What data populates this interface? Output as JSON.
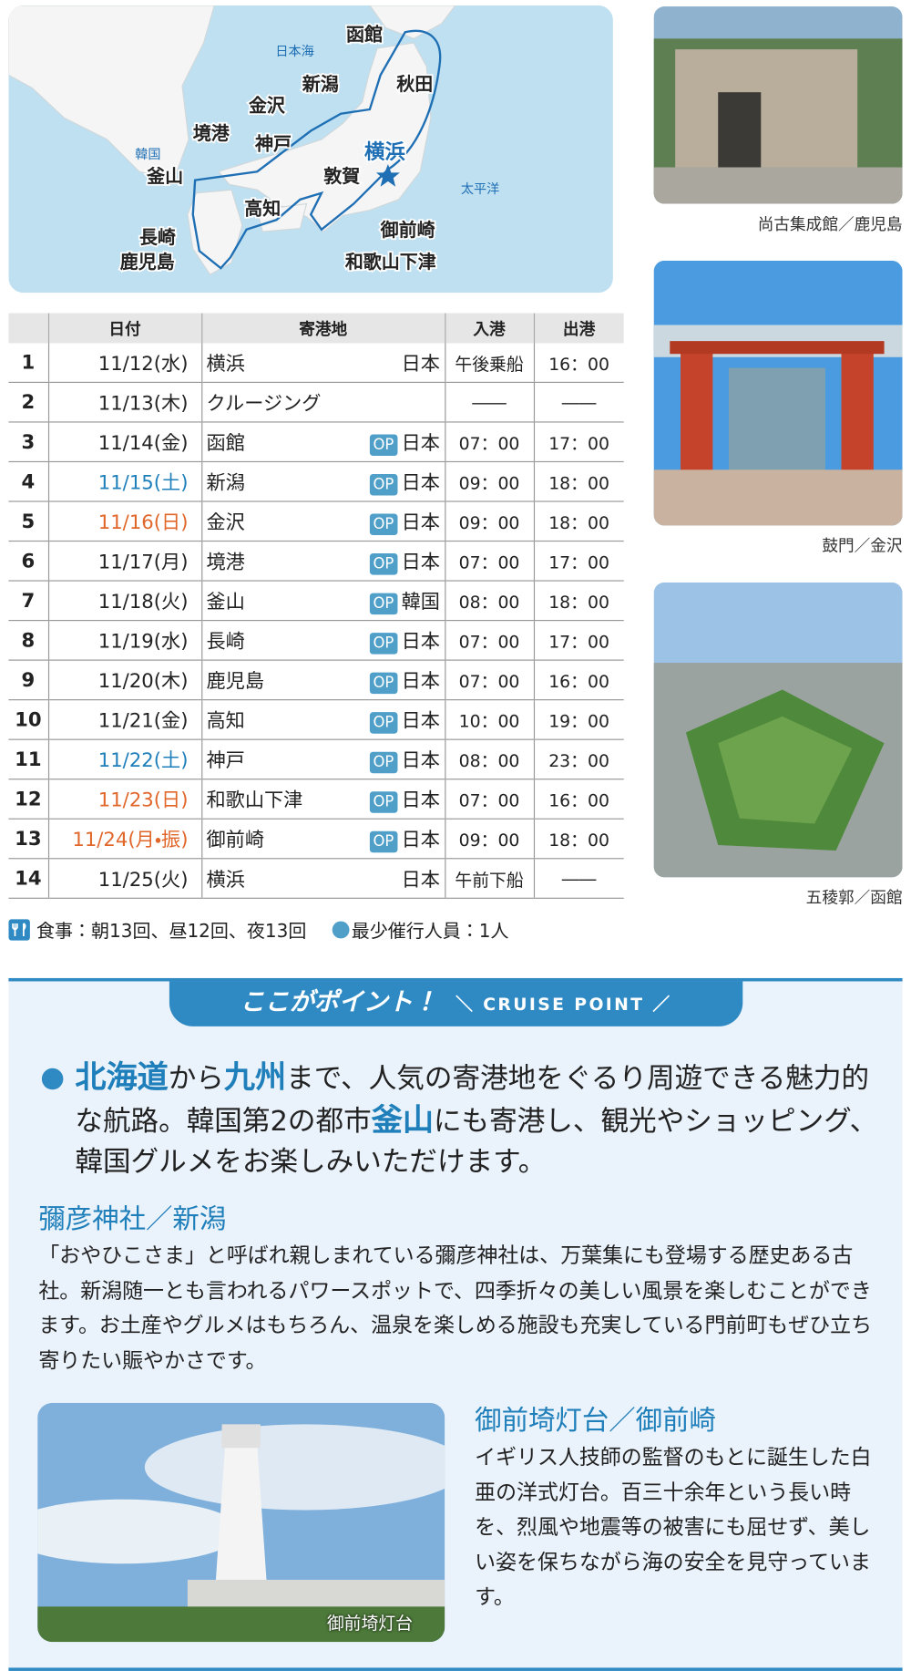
{
  "map": {
    "labels": [
      {
        "text": "函館",
        "kind": "port"
      },
      {
        "text": "日本海",
        "kind": "sea"
      },
      {
        "text": "新潟",
        "kind": "port"
      },
      {
        "text": "秋田",
        "kind": "port"
      },
      {
        "text": "金沢",
        "kind": "port"
      },
      {
        "text": "境港",
        "kind": "port"
      },
      {
        "text": "神戸",
        "kind": "port"
      },
      {
        "text": "横浜",
        "kind": "home"
      },
      {
        "text": "韓国",
        "kind": "sea"
      },
      {
        "text": "釜山",
        "kind": "port"
      },
      {
        "text": "敦賀",
        "kind": "port"
      },
      {
        "text": "太平洋",
        "kind": "sea"
      },
      {
        "text": "高知",
        "kind": "port"
      },
      {
        "text": "長崎",
        "kind": "port"
      },
      {
        "text": "御前崎",
        "kind": "port"
      },
      {
        "text": "鹿児島",
        "kind": "port"
      },
      {
        "text": "和歌山下津",
        "kind": "port"
      }
    ]
  },
  "photos": [
    {
      "caption": "尚古集成館／鹿児島"
    },
    {
      "caption": "鼓門／金沢"
    },
    {
      "caption": "五稜郭／函館"
    }
  ],
  "table": {
    "headers": [
      "日付",
      "寄港地",
      "入港",
      "出港"
    ],
    "rows": [
      {
        "no": 1,
        "date": "11/12(水)",
        "port": "横浜",
        "country": "日本",
        "arrive": "午後乗船",
        "depart": "16：00"
      },
      {
        "no": 2,
        "date": "11/13(木)",
        "port": "クルージング",
        "arrive": "――",
        "depart": "――"
      },
      {
        "no": 3,
        "date": "11/14(金)",
        "port": "函館",
        "op": "OP",
        "country": "日本",
        "arrive": "07：00",
        "depart": "17：00"
      },
      {
        "no": 4,
        "date": "11/15(土)",
        "date_color": "#1f7fba",
        "port": "新潟",
        "op": "OP",
        "country": "日本",
        "arrive": "09：00",
        "depart": "18：00"
      },
      {
        "no": 5,
        "date": "11/16(日)",
        "date_color": "#e0662a",
        "port": "金沢",
        "op": "OP",
        "country": "日本",
        "arrive": "09：00",
        "depart": "18：00"
      },
      {
        "no": 6,
        "date": "11/17(月)",
        "port": "境港",
        "op": "OP",
        "country": "日本",
        "arrive": "07：00",
        "depart": "17：00"
      },
      {
        "no": 7,
        "date": "11/18(火)",
        "port": "釜山",
        "op": "OP",
        "country": "韓国",
        "arrive": "08：00",
        "depart": "18：00"
      },
      {
        "no": 8,
        "date": "11/19(水)",
        "port": "長崎",
        "op": "OP",
        "country": "日本",
        "arrive": "07：00",
        "depart": "17：00"
      },
      {
        "no": 9,
        "date": "11/20(木)",
        "port": "鹿児島",
        "op": "OP",
        "country": "日本",
        "arrive": "07：00",
        "depart": "16：00"
      },
      {
        "no": 10,
        "date": "11/21(金)",
        "port": "高知",
        "op": "OP",
        "country": "日本",
        "arrive": "10：00",
        "depart": "19：00"
      },
      {
        "no": 11,
        "date": "11/22(土)",
        "date_color": "#1f7fba",
        "port": "神戸",
        "op": "OP",
        "country": "日本",
        "arrive": "08：00",
        "depart": "23：00"
      },
      {
        "no": 12,
        "date": "11/23(日)",
        "date_color": "#e0662a",
        "port": "和歌山下津",
        "op": "OP",
        "country": "日本",
        "arrive": "07：00",
        "depart": "16：00"
      },
      {
        "no": 13,
        "date": "11/24(月・振)",
        "date_color": "#e0662a",
        "port": "御前崎",
        "op": "OP",
        "country": "日本",
        "arrive": "09：00",
        "depart": "18：00"
      },
      {
        "no": 14,
        "date": "11/25(火)",
        "port": "横浜",
        "country": "日本",
        "arrive": "午前下船",
        "depart": "――"
      }
    ]
  },
  "notes": {
    "meals": "食事：朝13回、昼12回、夜13回",
    "min_people": "最少催行人員：1人"
  },
  "point": {
    "title": "ここがポイント！",
    "subtitle": "＼ CRUISE POINT ／",
    "bullet": [
      {
        "text": "北海道",
        "em": true
      },
      {
        "text": "から"
      },
      {
        "text": "九州",
        "em": true
      },
      {
        "text": "まで、人気の寄港地をぐるり周遊できる魅力的な航路。韓国第2の都市"
      },
      {
        "text": "釜山",
        "em": true
      },
      {
        "text": "にも寄港し、観光やショッピング、韓国グルメをお楽しみいただけます。"
      }
    ],
    "sections": [
      {
        "heading": "彌彦神社／新潟",
        "body": "「おやひこさま」と呼ばれ親しまれている彌彦神社は、万葉集にも登場する歴史ある古社。新潟随一とも言われるパワースポットで、四季折々の美しい風景を楽しむことができます。お土産やグルメはもちろん、温泉を楽しめる施設も充実している門前町もぜひ立ち寄りたい賑やかさです。"
      },
      {
        "heading": "御前埼灯台／御前崎",
        "body": "イギリス人技師の監督のもとに誕生した白亜の洋式灯台。百三十余年という長い時を、烈風や地震等の被害にも屈せず、美しい姿を保ちながら海の安全を見守っています。",
        "photo_caption": "御前埼灯台"
      }
    ]
  }
}
